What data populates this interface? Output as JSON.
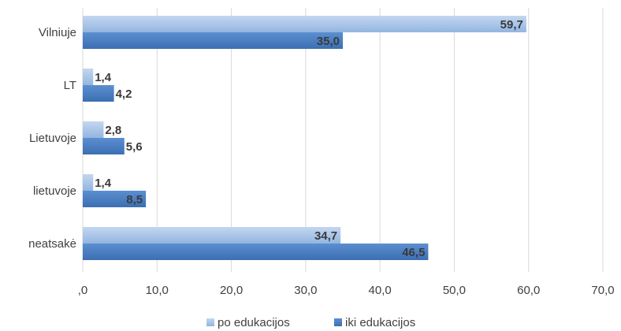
{
  "chart_data": {
    "type": "bar",
    "orientation": "horizontal",
    "categories": [
      "Vilniuje",
      "LT",
      "Lietuvoje",
      "lietuvoje",
      "neatsakė"
    ],
    "series": [
      {
        "name": "po edukacijos",
        "values": [
          59.7,
          1.4,
          2.8,
          1.4,
          34.7
        ],
        "labels": [
          "59,7",
          "1,4",
          "2,8",
          "1,4",
          "34,7"
        ],
        "color": "#a9c4e8"
      },
      {
        "name": "iki edukacijos",
        "values": [
          35.0,
          4.2,
          5.6,
          8.5,
          46.5
        ],
        "labels": [
          "35,0",
          "4,2",
          "5,6",
          "8,5",
          "46,5"
        ],
        "color": "#4a7fc0"
      }
    ],
    "xlim": [
      0,
      70
    ],
    "x_ticks": [
      ",0",
      "10,0",
      "20,0",
      "30,0",
      "40,0",
      "50,0",
      "60,0",
      "70,0"
    ],
    "grid": "vertical",
    "legend_position": "bottom",
    "title": "",
    "xlabel": "",
    "ylabel": ""
  }
}
